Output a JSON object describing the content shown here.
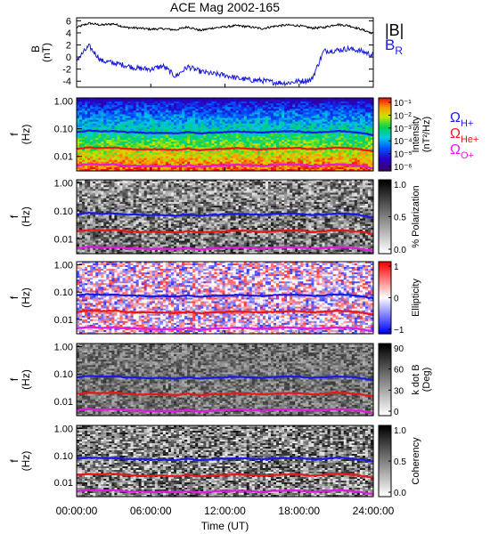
{
  "chart_data": [
    {
      "type": "line",
      "title": "ACE Mag 2002-165",
      "ylabel": "B",
      "ylabel_unit": "(nT)",
      "ylim": [
        -5,
        6.5
      ],
      "yticks": [
        "6",
        "4",
        "2",
        "0",
        "-2",
        "-4"
      ],
      "yticks_values": [
        6,
        4,
        2,
        0,
        -2,
        -4
      ],
      "x": [
        0,
        1,
        2,
        3,
        4,
        5,
        6,
        7,
        8,
        9,
        10,
        11,
        12,
        13,
        14,
        15,
        16,
        17,
        18,
        19,
        20,
        21,
        22,
        23,
        24
      ],
      "series": [
        {
          "name": "|B|",
          "color": "#000000",
          "values": [
            4.9,
            5.6,
            5.3,
            5.5,
            4.9,
            4.8,
            4.6,
            4.7,
            4.5,
            5.0,
            4.4,
            4.8,
            5.0,
            5.2,
            5.0,
            4.7,
            5.1,
            5.3,
            5.2,
            4.8,
            4.9,
            5.4,
            5.2,
            4.6,
            3.9
          ]
        },
        {
          "name": "B",
          "subscript": "R",
          "color": "#1818e0",
          "values": [
            -0.5,
            1.8,
            -0.6,
            -1.0,
            -1.4,
            -1.9,
            -2.0,
            -1.5,
            -3.2,
            -1.6,
            -2.4,
            -2.8,
            -3.0,
            -3.5,
            -3.8,
            -3.9,
            -4.2,
            -4.3,
            -4.0,
            -3.8,
            1.0,
            1.1,
            1.4,
            1.0,
            0.3
          ]
        }
      ]
    },
    {
      "type": "heatmap",
      "ylabel": "f",
      "ylabel_unit": "(Hz)",
      "yticks": [
        "1.00",
        "0.10",
        "0.01"
      ],
      "colorbar": {
        "label": "Intensity",
        "unit": "(nT²/Hz)",
        "ticks": [
          "10⁻¹",
          "10⁻²",
          "10⁻³",
          "10⁻⁴",
          "10⁻⁵",
          "10⁻⁶"
        ],
        "colormap": "rainbow"
      },
      "legend": [
        {
          "symbol": "Ω",
          "subscript": "H+",
          "color": "#1a1ae6"
        },
        {
          "symbol": "Ω",
          "subscript": "He+",
          "color": "#e61a1a"
        },
        {
          "symbol": "Ω",
          "subscript": "O+",
          "color": "#e01ae0"
        }
      ]
    },
    {
      "type": "heatmap",
      "ylabel": "f",
      "ylabel_unit": "(Hz)",
      "yticks": [
        "1.00",
        "0.10",
        "0.01"
      ],
      "colorbar": {
        "label": "% Polarization",
        "unit": "",
        "ticks": [
          "1.0",
          "0.5",
          "0.0"
        ],
        "colormap": "gray"
      }
    },
    {
      "type": "heatmap",
      "ylabel": "f",
      "ylabel_unit": "(Hz)",
      "yticks": [
        "1.00",
        "0.10",
        "0.01"
      ],
      "colorbar": {
        "label": "Ellipticity",
        "unit": "",
        "ticks": [
          "1",
          "0",
          "−1"
        ],
        "colormap": "red-white-blue"
      }
    },
    {
      "type": "heatmap",
      "ylabel": "f",
      "ylabel_unit": "(Hz)",
      "yticks": [
        "1.00",
        "0.10",
        "0.01"
      ],
      "colorbar": {
        "label": "k dot B",
        "unit": "(Deg)",
        "ticks": [
          "90",
          "60",
          "30",
          "0"
        ],
        "colormap": "gray"
      }
    },
    {
      "type": "heatmap",
      "ylabel": "f",
      "ylabel_unit": "(Hz)",
      "yticks": [
        "1.00",
        "0.10",
        "0.01"
      ],
      "colorbar": {
        "label": "Coherency",
        "unit": "",
        "ticks": [
          "1.0",
          "0.5",
          "0.0"
        ],
        "colormap": "gray"
      },
      "xticks": [
        "00:00:00",
        "06:00:00",
        "12:00:00",
        "18:00:00",
        "24:00:00"
      ],
      "xlabel": "Time (UT)"
    }
  ],
  "gyrofrequency_lines": {
    "x_hours": [
      0,
      1,
      2,
      3,
      4,
      5,
      6,
      7,
      8,
      9,
      10,
      11,
      12,
      13,
      14,
      15,
      16,
      17,
      18,
      19,
      20,
      21,
      22,
      23,
      24
    ],
    "H+": [
      0.075,
      0.085,
      0.08,
      0.082,
      0.075,
      0.074,
      0.07,
      0.072,
      0.068,
      0.076,
      0.067,
      0.073,
      0.076,
      0.079,
      0.076,
      0.072,
      0.078,
      0.081,
      0.079,
      0.073,
      0.075,
      0.082,
      0.079,
      0.07,
      0.059
    ],
    "He+": [
      0.019,
      0.021,
      0.02,
      0.021,
      0.019,
      0.018,
      0.018,
      0.018,
      0.017,
      0.019,
      0.017,
      0.018,
      0.019,
      0.02,
      0.019,
      0.018,
      0.019,
      0.02,
      0.02,
      0.018,
      0.019,
      0.021,
      0.02,
      0.018,
      0.015
    ],
    "O+": [
      0.0047,
      0.0053,
      0.005,
      0.0052,
      0.0047,
      0.0046,
      0.0044,
      0.0045,
      0.0043,
      0.0048,
      0.0042,
      0.0046,
      0.0048,
      0.005,
      0.0048,
      0.0045,
      0.0049,
      0.0051,
      0.005,
      0.0046,
      0.0047,
      0.0052,
      0.005,
      0.0044,
      0.0037
    ]
  },
  "xlim_hours": [
    0,
    24
  ]
}
